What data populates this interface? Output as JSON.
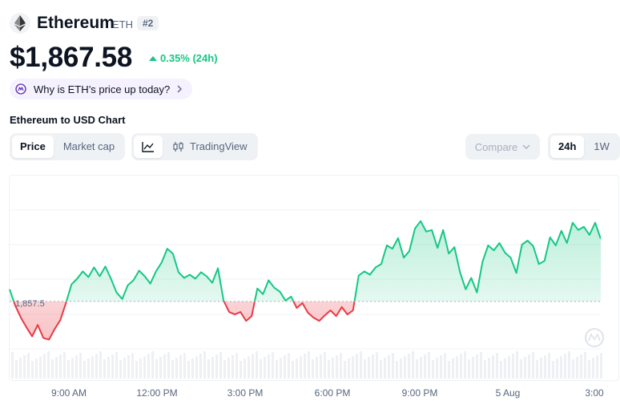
{
  "coin": {
    "name": "Ethereum",
    "symbol": "ETH",
    "rank": "#2",
    "price": "$1,867.58",
    "change": "0.35% (24h)",
    "why_prompt": "Why is ETH’s price up today?"
  },
  "chart_section": {
    "title": "Ethereum to USD Chart",
    "tabs": [
      "Price",
      "Market cap"
    ],
    "active_tab": "Price",
    "view_icon": "line-chart-icon",
    "tradingview_label": "TradingView",
    "compare_label": "Compare",
    "ranges": [
      "24h",
      "1W"
    ],
    "active_range": "24h"
  },
  "colors": {
    "up": "#16c784",
    "down": "#ea3943",
    "accent": "#6f42c1"
  },
  "chart_data": {
    "type": "area",
    "title": "",
    "xlabel": "",
    "ylabel": "",
    "reference_value": 1857.5,
    "reference_label": "1,857.5",
    "x_tick_labels": [
      "9:00 AM",
      "12:00 PM",
      "3:00 PM",
      "6:00 PM",
      "9:00 PM",
      "5 Aug",
      "3:00"
    ],
    "ylim": [
      1848,
      1873
    ],
    "series": [
      {
        "values": [
          1859.0,
          1857.0,
          1855.5,
          1854.3,
          1853.2,
          1854.6,
          1853.0,
          1852.8,
          1854.1,
          1855.2,
          1857.3,
          1859.6,
          1860.3,
          1861.2,
          1860.5,
          1861.7,
          1860.6,
          1861.8,
          1860.3,
          1858.6,
          1857.8,
          1859.5,
          1860.1,
          1861.3,
          1860.6,
          1859.7,
          1861.2,
          1862.3,
          1864.0,
          1863.4,
          1861.1,
          1860.4,
          1860.8,
          1860.3,
          1861.1,
          1860.6,
          1859.8,
          1861.6,
          1857.6,
          1856.2,
          1855.9,
          1856.2,
          1855.1,
          1855.7,
          1859.1,
          1858.4,
          1860.1,
          1859.2,
          1858.7,
          1857.6,
          1858.1,
          1856.7,
          1857.3,
          1856.1,
          1855.5,
          1855.1,
          1855.8,
          1856.4,
          1855.7,
          1856.8,
          1855.9,
          1856.4,
          1860.7,
          1861.2,
          1860.8,
          1861.7,
          1862.1,
          1864.4,
          1864.0,
          1865.3,
          1862.9,
          1863.7,
          1866.5,
          1867.4,
          1866.1,
          1866.3,
          1864.1,
          1866.3,
          1863.4,
          1864.2,
          1861.1,
          1859.0,
          1860.4,
          1858.6,
          1862.4,
          1864.4,
          1863.8,
          1864.7,
          1863.5,
          1862.9,
          1861.0,
          1864.5,
          1865.0,
          1864.3,
          1862.1,
          1862.5,
          1865.4,
          1864.4,
          1866.2,
          1864.7,
          1867.2,
          1866.3,
          1866.7,
          1865.7,
          1867.2,
          1865.2
        ]
      }
    ]
  }
}
